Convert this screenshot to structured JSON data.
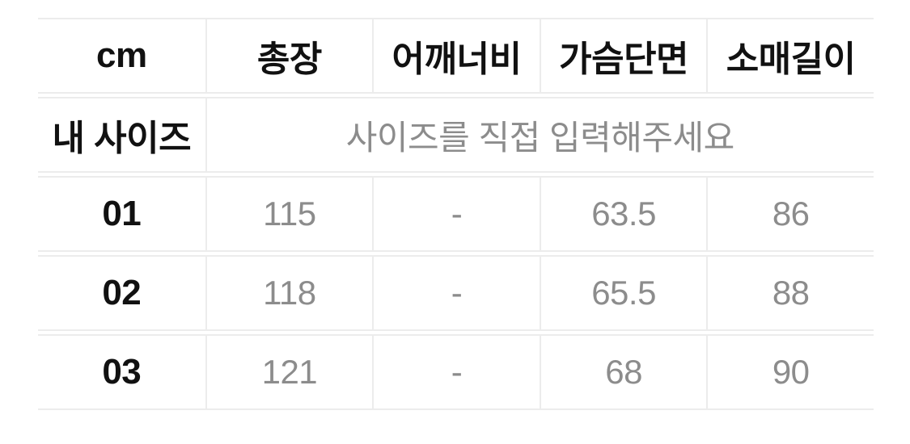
{
  "size_chart": {
    "unit_label": "cm",
    "columns": [
      "총장",
      "어깨너비",
      "가슴단면",
      "소매길이"
    ],
    "my_size": {
      "label": "내 사이즈",
      "placeholder": "사이즈를 직접 입력해주세요"
    },
    "rows": [
      {
        "label": "01",
        "values": [
          "115",
          "-",
          "63.5",
          "86"
        ]
      },
      {
        "label": "02",
        "values": [
          "118",
          "-",
          "65.5",
          "88"
        ]
      },
      {
        "label": "03",
        "values": [
          "121",
          "-",
          "68",
          "90"
        ]
      }
    ],
    "colors": {
      "header_text": "#111111",
      "value_text": "#8c8c8c",
      "border": "#ececec",
      "background": "#ffffff"
    }
  }
}
